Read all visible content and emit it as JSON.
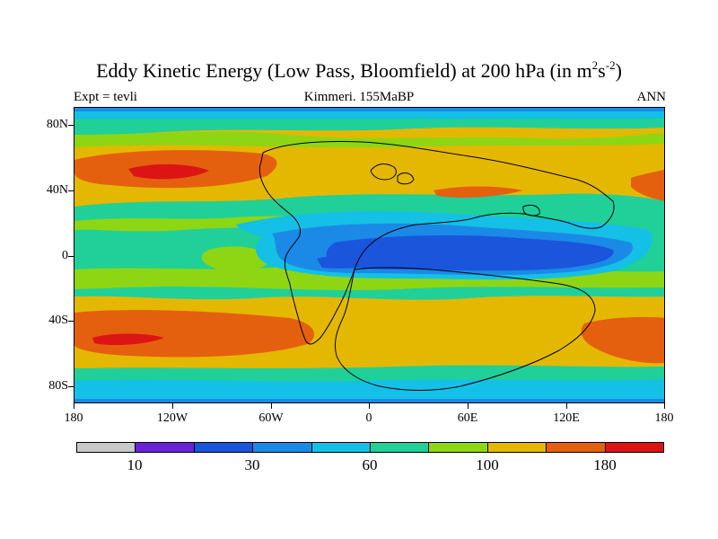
{
  "title": {
    "main": "Eddy Kinetic Energy (Low Pass, Bloomfield) at 200 hPa (in m",
    "sup1": "2",
    "mid": "s",
    "sup2": "-2",
    "close": ")"
  },
  "subtitle": {
    "left": "Expt = tevli",
    "center": "Kimmeri. 155MaBP",
    "right": "ANN"
  },
  "map": {
    "y_labels": [
      "80N",
      "40N",
      "0",
      "40S",
      "80S"
    ],
    "x_labels": [
      "180",
      "120W",
      "60W",
      "0",
      "60E",
      "120E",
      "180"
    ],
    "colors": [
      "#c8c8c8",
      "#6a22d8",
      "#1a55dc",
      "#1a8ae6",
      "#14c0e6",
      "#20d098",
      "#8ed614",
      "#e4b800",
      "#e4600e",
      "#dc1414"
    ]
  },
  "legend": {
    "labels": [
      "10",
      "30",
      "60",
      "100",
      "180"
    ]
  }
}
